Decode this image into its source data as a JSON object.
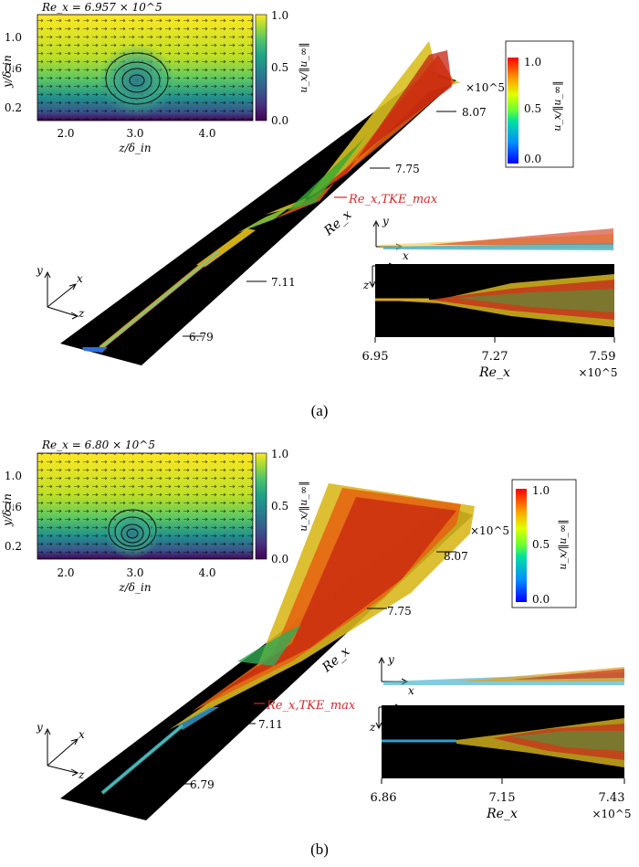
{
  "panels": [
    {
      "label": "(a)",
      "inset_title": "Re_x = 6.957 × 10^5",
      "inset_ylabel": "y/δ_in",
      "inset_xlabel": "z/δ_in",
      "inset_yticks": [
        "1.0",
        "0.6",
        "0.2"
      ],
      "inset_xticks": [
        "2.0",
        "3.0",
        "4.0"
      ],
      "inset_cbar_ticks": [
        "1.0",
        "0.5",
        "0.0"
      ],
      "inset_cbar_label": "u_x/‖u_∞‖",
      "legend_ticks": [
        "1.0",
        "0.5",
        "0.0"
      ],
      "legend_label": "u_x/‖u_∞‖",
      "main_ticks": [
        "8.07",
        "7.75",
        "7.11",
        "6.79"
      ],
      "main_multiplier": "×10^5",
      "main_axis_label": "Re_x",
      "tke_label": "Re_x,TKE_max",
      "axes_labels": {
        "x": "x",
        "y": "y",
        "z": "z"
      },
      "side_ticks": [
        "6.95",
        "7.27",
        "7.59"
      ],
      "side_label": "Re_x",
      "side_multiplier": "×10^5"
    },
    {
      "label": "(b)",
      "inset_title": "Re_x = 6.80 × 10^5",
      "inset_ylabel": "y/δ_in",
      "inset_xlabel": "z/δ_in",
      "inset_yticks": [
        "1.0",
        "0.6",
        "0.2"
      ],
      "inset_xticks": [
        "2.0",
        "3.0",
        "4.0"
      ],
      "inset_cbar_ticks": [
        "1.0",
        "0.5",
        "0.0"
      ],
      "inset_cbar_label": "u_x/‖u_∞‖",
      "legend_ticks": [
        "1.0",
        "0.5",
        "0.0"
      ],
      "legend_label": "u_x/‖u_∞‖",
      "main_ticks": [
        "8.07",
        "7.75",
        "7.11",
        "6.79"
      ],
      "main_multiplier": "×10^5",
      "main_axis_label": "Re_x",
      "tke_label": "Re_x,TKE_max",
      "axes_labels": {
        "x": "x",
        "y": "y",
        "z": "z"
      },
      "side_ticks": [
        "6.86",
        "7.15",
        "7.43"
      ],
      "side_label": "Re_x",
      "side_multiplier": "×10^5"
    }
  ],
  "colors": {
    "tke_marker": "#d62728",
    "plate": "#000000"
  }
}
